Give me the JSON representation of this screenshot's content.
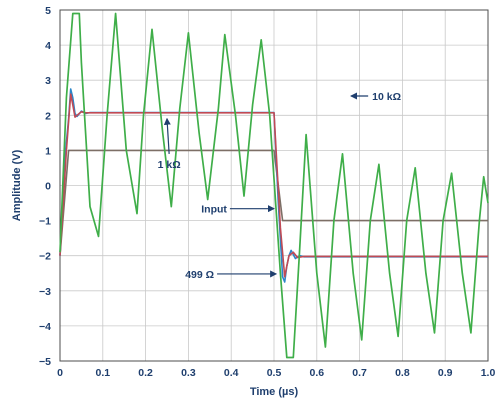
{
  "chart_data": {
    "type": "line",
    "xlabel": "Time (µs)",
    "ylabel": "Amplitude (V)",
    "xlim": [
      0,
      1.0
    ],
    "ylim": [
      -5,
      5
    ],
    "x_ticks": [
      "0",
      "0.1",
      "0.2",
      "0.3",
      "0.4",
      "0.5",
      "0.6",
      "0.7",
      "0.8",
      "0.9",
      "1.0"
    ],
    "y_ticks": [
      "5",
      "4",
      "3",
      "2",
      "1",
      "0",
      "−1",
      "−2",
      "−3",
      "−4",
      "−5"
    ],
    "grid": true,
    "series": [
      {
        "name": "Input",
        "color": "#7d6f66",
        "points": [
          [
            0,
            -2.0
          ],
          [
            0.02,
            1.0
          ],
          [
            0.5,
            1.0
          ],
          [
            0.52,
            -1.0
          ],
          [
            1.0,
            -1.0
          ]
        ]
      },
      {
        "name": "1 kΩ",
        "color": "#2c86c9",
        "points": [
          [
            0,
            -2.0
          ],
          [
            0.01,
            0.6
          ],
          [
            0.02,
            1.9
          ],
          [
            0.025,
            2.75
          ],
          [
            0.03,
            2.5
          ],
          [
            0.035,
            2.05
          ],
          [
            0.04,
            1.97
          ],
          [
            0.05,
            2.12
          ],
          [
            0.06,
            2.05
          ],
          [
            0.07,
            2.08
          ],
          [
            0.5,
            2.08
          ],
          [
            0.51,
            -0.5
          ],
          [
            0.52,
            -2.6
          ],
          [
            0.525,
            -2.75
          ],
          [
            0.53,
            -2.3
          ],
          [
            0.535,
            -2.0
          ],
          [
            0.54,
            -1.85
          ],
          [
            0.55,
            -2.08
          ],
          [
            0.56,
            -2.0
          ],
          [
            0.57,
            -2.03
          ],
          [
            1.0,
            -2.03
          ]
        ]
      },
      {
        "name": "499 Ω",
        "color": "#c04a55",
        "points": [
          [
            0,
            -2.0
          ],
          [
            0.015,
            1.0
          ],
          [
            0.025,
            2.6
          ],
          [
            0.03,
            2.3
          ],
          [
            0.035,
            1.95
          ],
          [
            0.04,
            2.0
          ],
          [
            0.05,
            2.1
          ],
          [
            0.06,
            2.07
          ],
          [
            0.5,
            2.07
          ],
          [
            0.515,
            -1.2
          ],
          [
            0.525,
            -2.6
          ],
          [
            0.53,
            -2.3
          ],
          [
            0.535,
            -2.0
          ],
          [
            0.545,
            -1.9
          ],
          [
            0.555,
            -2.05
          ],
          [
            0.57,
            -2.02
          ],
          [
            1.0,
            -2.02
          ]
        ]
      },
      {
        "name": "10 kΩ",
        "color": "#3fae49",
        "points": [
          [
            0,
            -1.9
          ],
          [
            0.015,
            2.5
          ],
          [
            0.03,
            4.9
          ],
          [
            0.045,
            4.9
          ],
          [
            0.05,
            3.5
          ],
          [
            0.07,
            -0.6
          ],
          [
            0.09,
            -1.45
          ],
          [
            0.11,
            2.0
          ],
          [
            0.13,
            4.9
          ],
          [
            0.155,
            1.0
          ],
          [
            0.18,
            -0.8
          ],
          [
            0.195,
            2.0
          ],
          [
            0.215,
            4.45
          ],
          [
            0.24,
            1.5
          ],
          [
            0.26,
            -0.6
          ],
          [
            0.28,
            2.2
          ],
          [
            0.3,
            4.35
          ],
          [
            0.325,
            1.5
          ],
          [
            0.345,
            -0.4
          ],
          [
            0.37,
            2.2
          ],
          [
            0.385,
            4.3
          ],
          [
            0.41,
            2.0
          ],
          [
            0.43,
            -0.3
          ],
          [
            0.45,
            2.3
          ],
          [
            0.47,
            4.15
          ],
          [
            0.49,
            2.0
          ],
          [
            0.515,
            -2.5
          ],
          [
            0.53,
            -4.9
          ],
          [
            0.545,
            -4.9
          ],
          [
            0.56,
            -1.8
          ],
          [
            0.575,
            1.45
          ],
          [
            0.6,
            -2.5
          ],
          [
            0.62,
            -4.6
          ],
          [
            0.64,
            -1.0
          ],
          [
            0.66,
            0.9
          ],
          [
            0.685,
            -2.5
          ],
          [
            0.705,
            -4.4
          ],
          [
            0.725,
            -1.0
          ],
          [
            0.745,
            0.6
          ],
          [
            0.77,
            -2.5
          ],
          [
            0.79,
            -4.3
          ],
          [
            0.81,
            -1.0
          ],
          [
            0.83,
            0.5
          ],
          [
            0.855,
            -2.5
          ],
          [
            0.875,
            -4.2
          ],
          [
            0.895,
            -1.0
          ],
          [
            0.915,
            0.35
          ],
          [
            0.94,
            -2.5
          ],
          [
            0.96,
            -4.2
          ],
          [
            0.98,
            -1.0
          ],
          [
            0.99,
            0.25
          ],
          [
            1.0,
            -0.5
          ]
        ]
      }
    ],
    "annotations": [
      {
        "text": "10 kΩ",
        "series": "10 kΩ",
        "at": [
          0.72,
          2.55
        ],
        "points_to": [
          0.68,
          2.55
        ]
      },
      {
        "text": "1 kΩ",
        "series": "1 kΩ",
        "at": [
          0.255,
          0.9
        ],
        "points_to": [
          0.25,
          1.9
        ]
      },
      {
        "text": "Input",
        "series": "Input",
        "at": [
          0.39,
          -0.66
        ],
        "points_to": [
          0.5,
          -0.66
        ]
      },
      {
        "text": "499 Ω",
        "series": "499 Ω",
        "at": [
          0.36,
          -2.52
        ],
        "points_to": [
          0.505,
          -2.52
        ]
      }
    ]
  }
}
